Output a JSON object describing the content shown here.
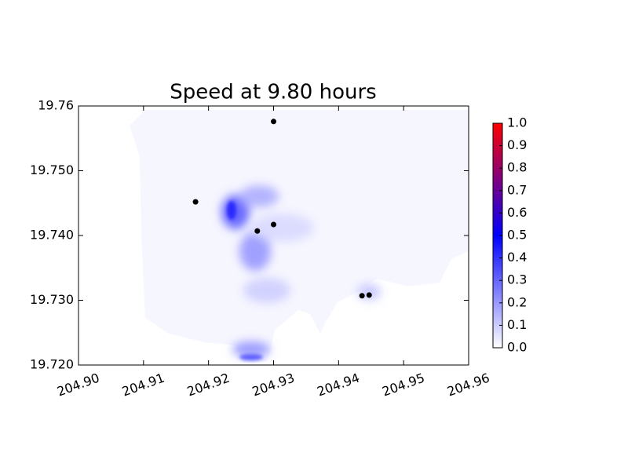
{
  "chart_data": {
    "type": "scatter",
    "title": "Speed at 9.80 hours",
    "xlim": [
      204.9,
      204.96
    ],
    "ylim": [
      19.72,
      19.76
    ],
    "xticks": [
      {
        "value": 204.9,
        "label": "204.90"
      },
      {
        "value": 204.91,
        "label": "204.91"
      },
      {
        "value": 204.92,
        "label": "204.92"
      },
      {
        "value": 204.93,
        "label": "204.93"
      },
      {
        "value": 204.94,
        "label": "204.94"
      },
      {
        "value": 204.95,
        "label": "204.95"
      },
      {
        "value": 204.96,
        "label": "204.96"
      }
    ],
    "yticks": [
      {
        "value": 19.72,
        "label": "19.720"
      },
      {
        "value": 19.73,
        "label": "19.730"
      },
      {
        "value": 19.74,
        "label": "19.740"
      },
      {
        "value": 19.75,
        "label": "19.750"
      },
      19.76
    ],
    "series": [
      {
        "color": "#000000",
        "x": [
          204.93,
          204.918,
          204.9275,
          204.93,
          204.9436,
          204.9447
        ],
        "y": [
          19.7576,
          19.7452,
          19.7407,
          19.7417,
          19.7307,
          19.7308
        ]
      }
    ],
    "colorbar": {
      "lim": [
        0,
        1
      ],
      "colormap": [
        "#ffffff",
        "#0000ff",
        "#ff0000"
      ],
      "ticks": [
        {
          "value": 0,
          "label": "0.0"
        },
        0.1,
        0.2,
        0.3,
        0.4,
        0.5,
        0.6,
        0.7,
        0.8,
        0.9,
        {
          "value": 1,
          "label": "1.0"
        }
      ]
    }
  }
}
